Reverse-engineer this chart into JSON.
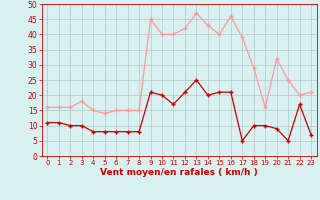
{
  "x": [
    0,
    1,
    2,
    3,
    4,
    5,
    6,
    7,
    8,
    9,
    10,
    11,
    12,
    13,
    14,
    15,
    16,
    17,
    18,
    19,
    20,
    21,
    22,
    23
  ],
  "wind_mean": [
    11,
    11,
    10,
    10,
    8,
    8,
    8,
    8,
    8,
    21,
    20,
    17,
    21,
    25,
    20,
    21,
    21,
    5,
    10,
    10,
    9,
    5,
    17,
    7
  ],
  "wind_gust": [
    16,
    16,
    16,
    18,
    15,
    14,
    15,
    15,
    15,
    45,
    40,
    40,
    42,
    47,
    43,
    40,
    46,
    39,
    29,
    16,
    32,
    25,
    20,
    21
  ],
  "bg_color": "#d8f0f0",
  "grid_color": "#b0c8c8",
  "line_mean_color": "#cc0000",
  "line_gust_color": "#ff9999",
  "xlabel": "Vent moyen/en rafales ( km/h )",
  "xlabel_color": "#cc0000",
  "tick_color": "#cc0000",
  "ylim": [
    0,
    50
  ],
  "yticks": [
    0,
    5,
    10,
    15,
    20,
    25,
    30,
    35,
    40,
    45,
    50
  ]
}
